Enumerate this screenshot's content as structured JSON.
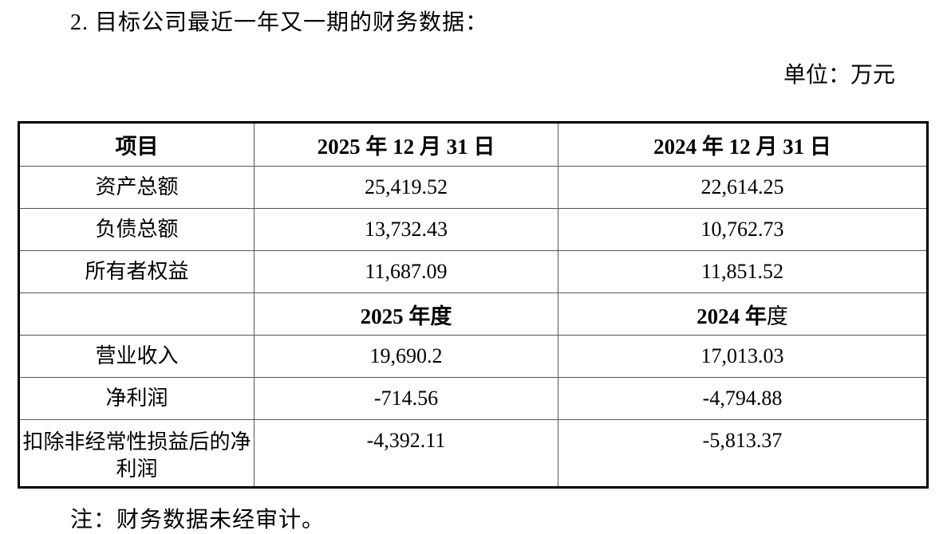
{
  "page": {
    "title": "2. 目标公司最近一年又一期的财务数据：",
    "unit_label": "单位：万元",
    "note": "注：财务数据未经审计。"
  },
  "table": {
    "header": {
      "item": "项目",
      "date_2025": "2025 年 12 月 31 日",
      "date_2024": "2024 年 12 月 31 日"
    },
    "balance_rows": [
      {
        "label": "资产总额",
        "v2025": "25,419.52",
        "v2024": "22,614.25"
      },
      {
        "label": "负债总额",
        "v2025": "13,732.43",
        "v2024": "10,762.73"
      },
      {
        "label": "所有者权益",
        "v2025": "11,687.09",
        "v2024": "11,851.52"
      }
    ],
    "period_header": {
      "p2025": "2025 年度",
      "p2024_bold": "2024 年",
      "p2024_tail": "度"
    },
    "income_rows": [
      {
        "label": "营业收入",
        "v2025": "19,690.2",
        "v2024": "17,013.03"
      },
      {
        "label": "净利润",
        "v2025": "-714.56",
        "v2024": "-4,794.88"
      },
      {
        "label": "扣除非经常性损益后的净利润",
        "v2025": "-4,392.11",
        "v2024": "-5,813.37"
      }
    ]
  }
}
